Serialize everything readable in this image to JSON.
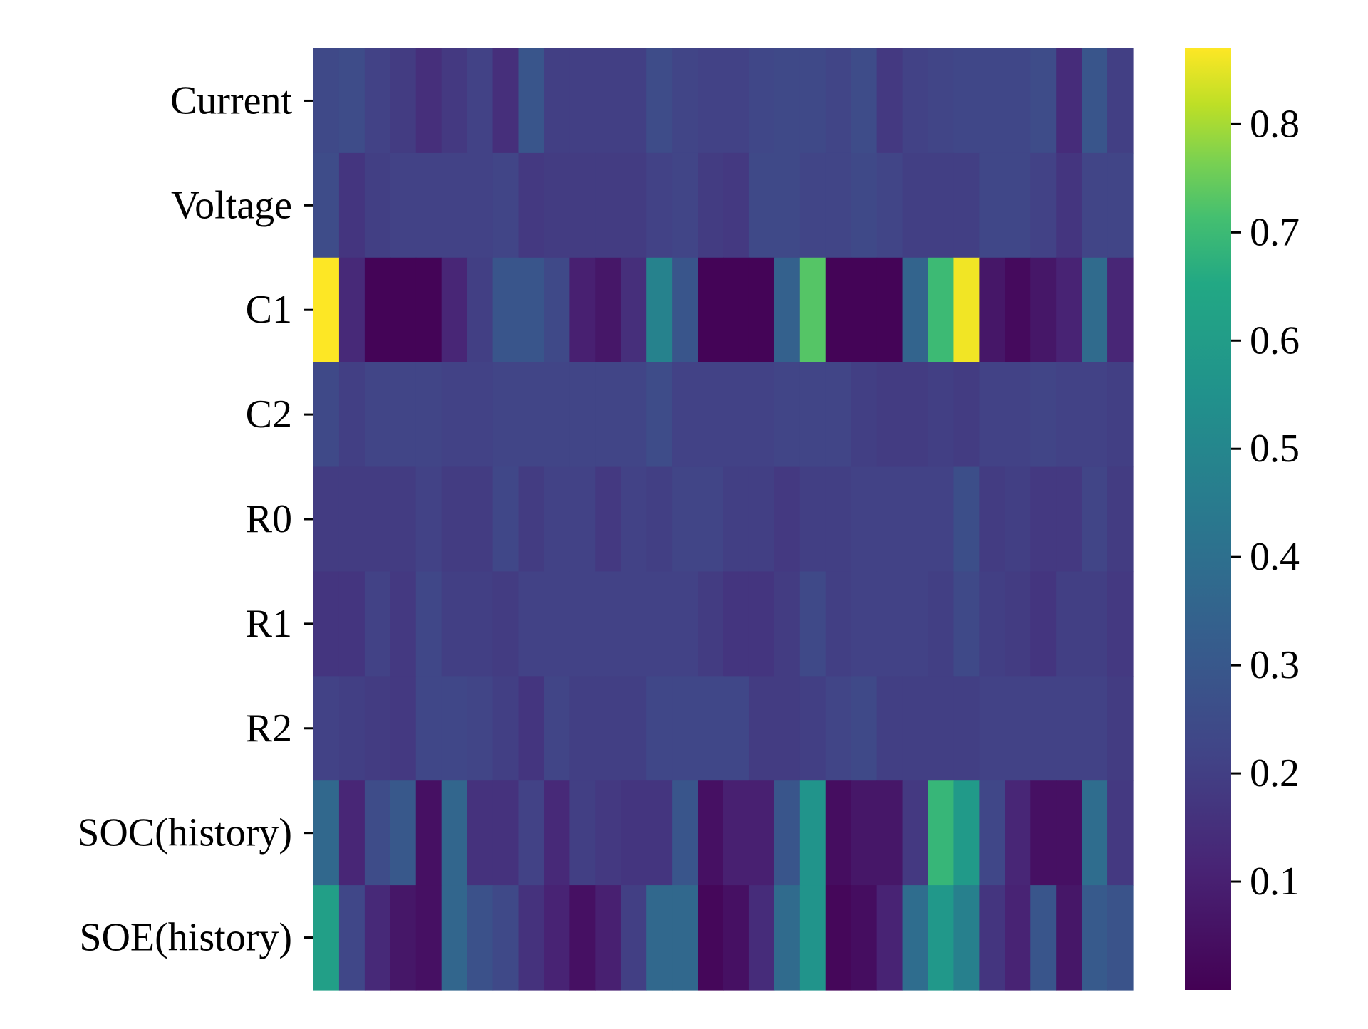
{
  "chart_data": {
    "type": "heatmap",
    "colormap": "viridis",
    "rows": [
      "Current",
      "Voltage",
      "C1",
      "C2",
      "R0",
      "R1",
      "R2",
      "SOC(history)",
      "SOE(history)"
    ],
    "columns_count": 32,
    "values": [
      [
        0.24,
        0.25,
        0.21,
        0.19,
        0.15,
        0.18,
        0.21,
        0.15,
        0.29,
        0.2,
        0.2,
        0.2,
        0.2,
        0.25,
        0.22,
        0.21,
        0.21,
        0.23,
        0.24,
        0.24,
        0.22,
        0.25,
        0.18,
        0.21,
        0.22,
        0.23,
        0.23,
        0.23,
        0.25,
        0.14,
        0.29,
        0.2
      ],
      [
        0.25,
        0.17,
        0.2,
        0.21,
        0.21,
        0.21,
        0.21,
        0.22,
        0.18,
        0.19,
        0.19,
        0.19,
        0.19,
        0.21,
        0.22,
        0.19,
        0.18,
        0.24,
        0.24,
        0.22,
        0.22,
        0.24,
        0.22,
        0.2,
        0.2,
        0.2,
        0.23,
        0.23,
        0.21,
        0.17,
        0.22,
        0.22
      ],
      [
        0.87,
        0.13,
        0.01,
        0.01,
        0.01,
        0.12,
        0.2,
        0.29,
        0.29,
        0.24,
        0.1,
        0.07,
        0.15,
        0.48,
        0.29,
        0.01,
        0.01,
        0.01,
        0.34,
        0.73,
        0.01,
        0.01,
        0.01,
        0.35,
        0.7,
        0.86,
        0.07,
        0.03,
        0.07,
        0.11,
        0.38,
        0.12
      ],
      [
        0.24,
        0.2,
        0.22,
        0.22,
        0.22,
        0.21,
        0.21,
        0.22,
        0.22,
        0.22,
        0.22,
        0.22,
        0.22,
        0.25,
        0.21,
        0.21,
        0.21,
        0.21,
        0.22,
        0.22,
        0.22,
        0.2,
        0.19,
        0.19,
        0.2,
        0.19,
        0.21,
        0.21,
        0.22,
        0.21,
        0.21,
        0.2
      ],
      [
        0.19,
        0.19,
        0.19,
        0.19,
        0.21,
        0.19,
        0.19,
        0.23,
        0.19,
        0.21,
        0.21,
        0.18,
        0.21,
        0.2,
        0.22,
        0.22,
        0.2,
        0.2,
        0.18,
        0.2,
        0.2,
        0.21,
        0.21,
        0.21,
        0.21,
        0.26,
        0.19,
        0.2,
        0.18,
        0.18,
        0.22,
        0.19
      ],
      [
        0.17,
        0.17,
        0.21,
        0.18,
        0.23,
        0.2,
        0.2,
        0.19,
        0.21,
        0.21,
        0.21,
        0.21,
        0.21,
        0.21,
        0.21,
        0.19,
        0.17,
        0.17,
        0.19,
        0.24,
        0.2,
        0.21,
        0.21,
        0.21,
        0.2,
        0.24,
        0.2,
        0.19,
        0.17,
        0.2,
        0.2,
        0.18
      ],
      [
        0.21,
        0.2,
        0.19,
        0.18,
        0.23,
        0.23,
        0.22,
        0.2,
        0.17,
        0.22,
        0.2,
        0.2,
        0.2,
        0.23,
        0.23,
        0.23,
        0.23,
        0.19,
        0.19,
        0.2,
        0.22,
        0.24,
        0.2,
        0.2,
        0.2,
        0.2,
        0.21,
        0.21,
        0.21,
        0.21,
        0.21,
        0.19
      ],
      [
        0.37,
        0.12,
        0.25,
        0.3,
        0.05,
        0.36,
        0.16,
        0.16,
        0.21,
        0.13,
        0.2,
        0.18,
        0.17,
        0.17,
        0.29,
        0.05,
        0.1,
        0.1,
        0.29,
        0.56,
        0.04,
        0.07,
        0.07,
        0.18,
        0.69,
        0.59,
        0.23,
        0.12,
        0.05,
        0.05,
        0.39,
        0.18
      ],
      [
        0.61,
        0.23,
        0.13,
        0.07,
        0.05,
        0.36,
        0.27,
        0.24,
        0.16,
        0.11,
        0.05,
        0.1,
        0.2,
        0.37,
        0.37,
        0.02,
        0.05,
        0.14,
        0.38,
        0.56,
        0.02,
        0.04,
        0.11,
        0.39,
        0.58,
        0.47,
        0.17,
        0.11,
        0.29,
        0.07,
        0.31,
        0.28
      ]
    ],
    "colorbar": {
      "range": [
        0.0,
        0.87
      ],
      "ticks": [
        0.1,
        0.2,
        0.3,
        0.4,
        0.5,
        0.6,
        0.7,
        0.8
      ],
      "tick_labels": [
        "0.1",
        "0.2",
        "0.3",
        "0.4",
        "0.5",
        "0.6",
        "0.7",
        "0.8"
      ]
    },
    "title": "",
    "xlabel": "",
    "ylabel": ""
  }
}
